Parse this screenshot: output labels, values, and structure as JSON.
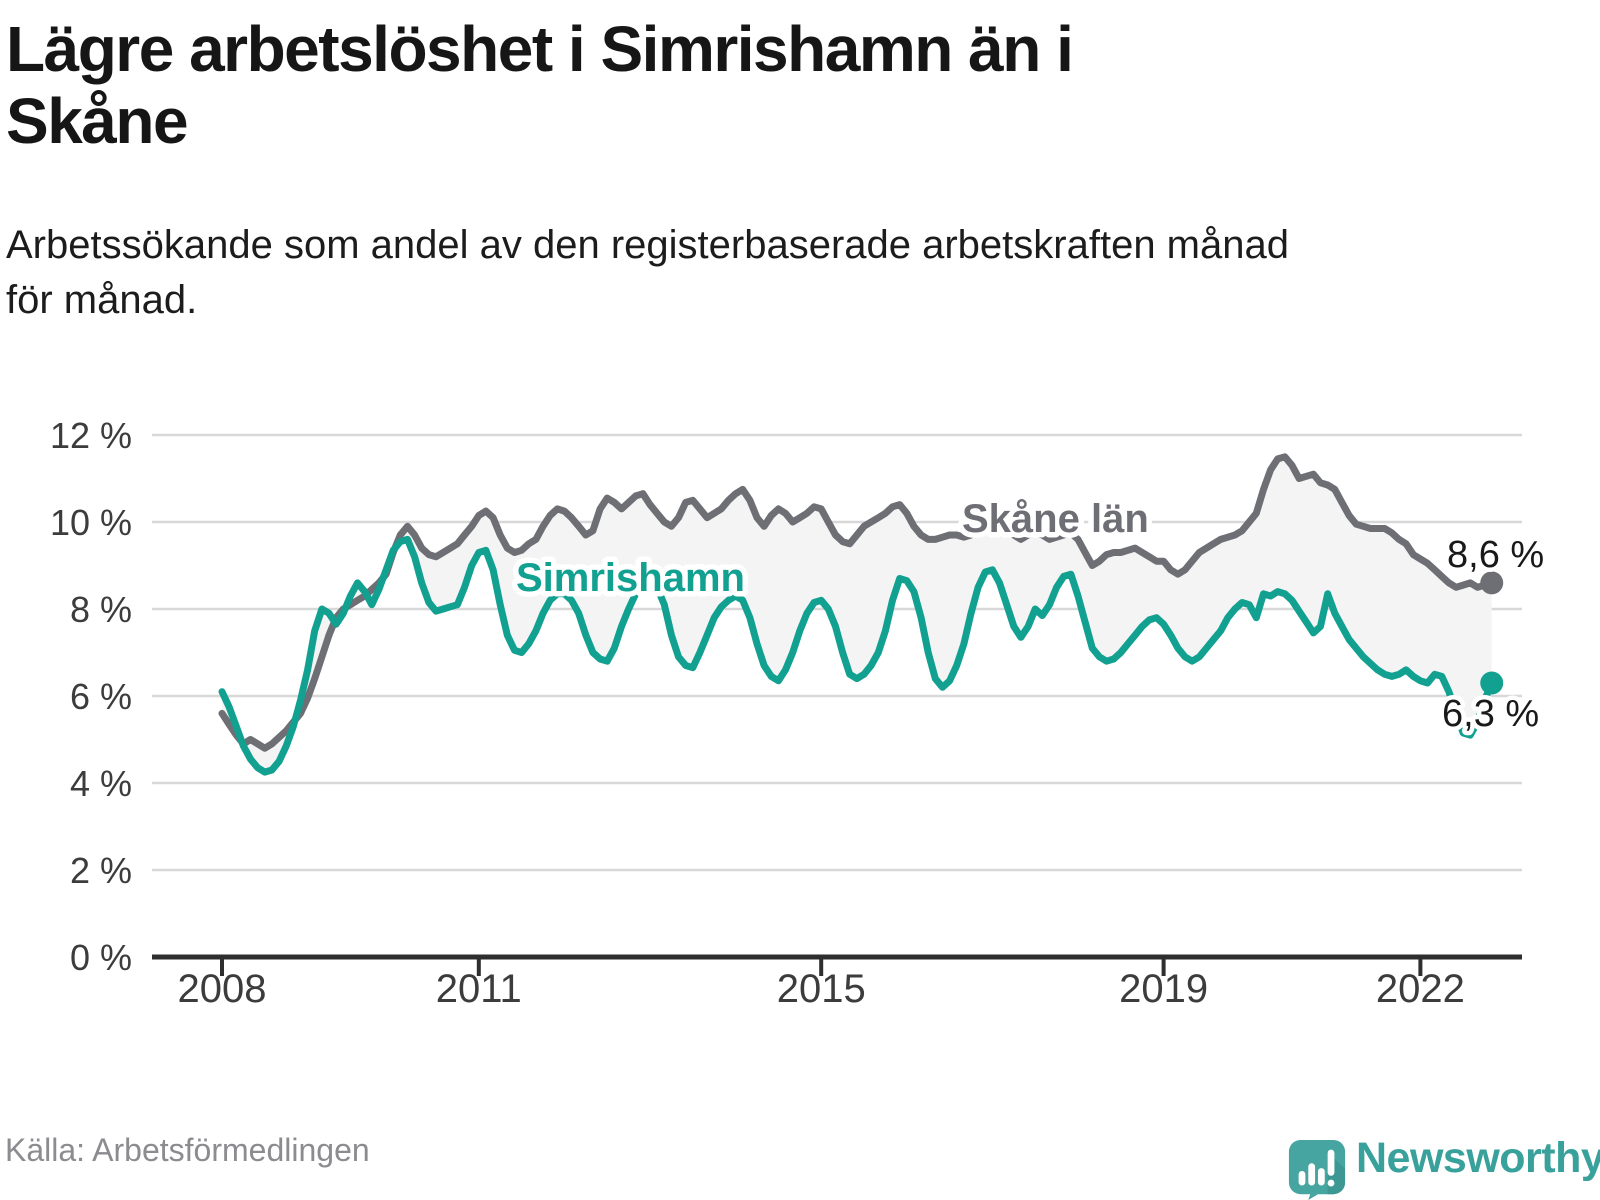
{
  "header": {
    "title": "Lägre arbetslöshet i Simrishamn än i\nSkåne",
    "subtitle": "Arbetssökande som andel av den registerbaserade arbetskraften månad\nför månad."
  },
  "y_axis": {
    "ticks": [
      {
        "value": 12,
        "label": "12 %"
      },
      {
        "value": 10,
        "label": "10 %"
      },
      {
        "value": 8,
        "label": "8 %"
      },
      {
        "value": 6,
        "label": "6 %"
      },
      {
        "value": 4,
        "label": "4 %"
      },
      {
        "value": 2,
        "label": "2 %"
      },
      {
        "value": 0,
        "label": "0 %"
      }
    ]
  },
  "x_axis": {
    "ticks": [
      {
        "year": 2008,
        "label": "2008"
      },
      {
        "year": 2011,
        "label": "2011"
      },
      {
        "year": 2015,
        "label": "2015"
      },
      {
        "year": 2019,
        "label": "2019"
      },
      {
        "year": 2022,
        "label": "2022"
      }
    ]
  },
  "annotations": {
    "simrishamn_label": "Simrishamn",
    "skane_label": "Skåne län",
    "skane_end_value": "8,6 %",
    "simrishamn_end_value": "6,3 %"
  },
  "footer": {
    "source": "Källa: Arbetsförmedlingen",
    "logo_text": "Newsworthy"
  },
  "colors": {
    "skane_line": "#6e6e75",
    "simrishamn_line": "#12a191",
    "band_fill": "#f4f4f4",
    "gridline": "#d8d8d8",
    "axis": "#2e2e2e",
    "logo_teal": "#46a5a0"
  },
  "chart_data": {
    "type": "line",
    "title": "Lägre arbetslöshet i Simrishamn än i Skåne",
    "subtitle": "Arbetssökande som andel av den registerbaserade arbetskraften månad för månad.",
    "unit": "percent of registered labour force",
    "frequency": "monthly",
    "x_start": "2008-01",
    "x_end": "2022-11",
    "ylim": [
      0,
      12
    ],
    "grid": true,
    "legend_position": "inline-labels",
    "x_tick_years": [
      2008,
      2011,
      2015,
      2019,
      2022
    ],
    "series": [
      {
        "name": "Skåne län",
        "color": "#6e6e75",
        "last_value": 8.6,
        "last_value_label": "8,6 %",
        "values": [
          5.6,
          5.35,
          5.1,
          4.9,
          5.0,
          4.9,
          4.8,
          4.9,
          5.05,
          5.2,
          5.4,
          5.6,
          5.95,
          6.4,
          6.9,
          7.4,
          7.8,
          8.0,
          8.1,
          8.2,
          8.3,
          8.45,
          8.6,
          8.8,
          9.3,
          9.7,
          9.9,
          9.7,
          9.4,
          9.25,
          9.2,
          9.3,
          9.4,
          9.5,
          9.7,
          9.9,
          10.15,
          10.25,
          10.1,
          9.7,
          9.4,
          9.3,
          9.35,
          9.5,
          9.6,
          9.9,
          10.15,
          10.3,
          10.25,
          10.1,
          9.9,
          9.7,
          9.8,
          10.3,
          10.55,
          10.45,
          10.3,
          10.45,
          10.6,
          10.65,
          10.4,
          10.2,
          10.0,
          9.9,
          10.1,
          10.45,
          10.5,
          10.3,
          10.1,
          10.2,
          10.3,
          10.5,
          10.65,
          10.75,
          10.5,
          10.1,
          9.9,
          10.15,
          10.3,
          10.2,
          10.0,
          10.1,
          10.2,
          10.35,
          10.3,
          10.0,
          9.7,
          9.55,
          9.5,
          9.7,
          9.9,
          10.0,
          10.1,
          10.2,
          10.35,
          10.4,
          10.2,
          9.9,
          9.7,
          9.6,
          9.6,
          9.65,
          9.7,
          9.7,
          9.65,
          9.7,
          9.8,
          9.9,
          9.95,
          9.9,
          9.8,
          9.7,
          9.6,
          9.7,
          9.75,
          9.7,
          9.6,
          9.65,
          9.7,
          9.75,
          9.6,
          9.3,
          9.0,
          9.1,
          9.25,
          9.3,
          9.3,
          9.35,
          9.4,
          9.3,
          9.2,
          9.1,
          9.1,
          8.9,
          8.8,
          8.9,
          9.1,
          9.3,
          9.4,
          9.5,
          9.6,
          9.65,
          9.7,
          9.8,
          10.0,
          10.2,
          10.75,
          11.2,
          11.45,
          11.5,
          11.3,
          11.0,
          11.05,
          11.1,
          10.9,
          10.85,
          10.75,
          10.45,
          10.15,
          9.95,
          9.9,
          9.85,
          9.85,
          9.85,
          9.75,
          9.6,
          9.5,
          9.25,
          9.15,
          9.05,
          8.9,
          8.75,
          8.6,
          8.5,
          8.55,
          8.6,
          8.5,
          8.55,
          8.6
        ]
      },
      {
        "name": "Simrishamn",
        "color": "#12a191",
        "last_value": 6.3,
        "last_value_label": "6,3 %",
        "values": [
          6.1,
          5.75,
          5.3,
          4.85,
          4.55,
          4.35,
          4.25,
          4.3,
          4.5,
          4.85,
          5.3,
          5.9,
          6.6,
          7.5,
          8.0,
          7.9,
          7.65,
          7.9,
          8.3,
          8.6,
          8.4,
          8.1,
          8.45,
          8.9,
          9.35,
          9.55,
          9.6,
          9.2,
          8.6,
          8.15,
          7.95,
          8.0,
          8.05,
          8.1,
          8.5,
          9.0,
          9.3,
          9.35,
          8.9,
          8.1,
          7.4,
          7.05,
          7.0,
          7.2,
          7.5,
          7.9,
          8.2,
          8.35,
          8.35,
          8.2,
          7.9,
          7.4,
          7.0,
          6.85,
          6.8,
          7.1,
          7.6,
          8.0,
          8.35,
          8.6,
          8.65,
          8.5,
          8.1,
          7.4,
          6.9,
          6.7,
          6.65,
          7.0,
          7.4,
          7.8,
          8.05,
          8.2,
          8.3,
          8.2,
          7.8,
          7.2,
          6.7,
          6.45,
          6.35,
          6.6,
          7.0,
          7.5,
          7.9,
          8.15,
          8.2,
          8.0,
          7.6,
          7.0,
          6.5,
          6.4,
          6.5,
          6.7,
          7.0,
          7.5,
          8.2,
          8.7,
          8.65,
          8.4,
          7.8,
          7.0,
          6.4,
          6.2,
          6.35,
          6.7,
          7.2,
          7.9,
          8.5,
          8.85,
          8.9,
          8.6,
          8.1,
          7.6,
          7.35,
          7.6,
          8.0,
          7.85,
          8.1,
          8.5,
          8.75,
          8.8,
          8.3,
          7.7,
          7.1,
          6.9,
          6.8,
          6.85,
          7.0,
          7.2,
          7.4,
          7.6,
          7.75,
          7.8,
          7.65,
          7.4,
          7.1,
          6.9,
          6.8,
          6.9,
          7.1,
          7.3,
          7.5,
          7.8,
          8.0,
          8.15,
          8.1,
          7.8,
          8.35,
          8.3,
          8.4,
          8.35,
          8.2,
          7.95,
          7.7,
          7.45,
          7.6,
          8.35,
          7.9,
          7.6,
          7.3,
          7.1,
          6.9,
          6.75,
          6.6,
          6.5,
          6.45,
          6.5,
          6.6,
          6.45,
          6.35,
          6.3,
          6.5,
          6.45,
          6.1,
          5.6,
          5.15,
          5.1,
          5.4,
          5.9,
          6.3
        ]
      }
    ]
  }
}
